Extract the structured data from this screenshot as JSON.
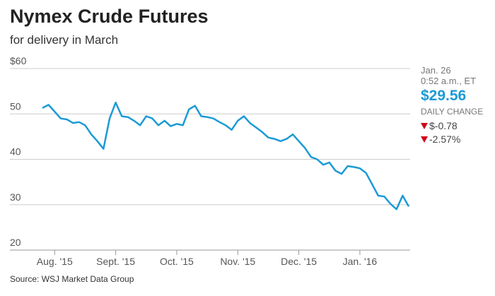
{
  "chart_data": {
    "type": "line",
    "title": "Nymex Crude Futures",
    "subtitle": "for delivery in March",
    "source": "Source: WSJ Market Data Group",
    "annotations": [
      "Jan. 26",
      "0:52 a.m., ET",
      "$29.56",
      "DAILY CHANGE",
      "$-0.78",
      "-2.57%"
    ],
    "categories": [
      null,
      null,
      "Aug. '15",
      null,
      null,
      null,
      null,
      null,
      null,
      null,
      null,
      null,
      "Sept. '15",
      null,
      null,
      null,
      null,
      null,
      null,
      null,
      null,
      null,
      "Oct. '15",
      null,
      null,
      null,
      null,
      null,
      null,
      null,
      null,
      null,
      "Nov. '15",
      null,
      null,
      null,
      null,
      null,
      null,
      null,
      null,
      null,
      "Dec. '15",
      null,
      null,
      null,
      null,
      null,
      null,
      null,
      null,
      null,
      "Jan. '16",
      null,
      null,
      null,
      null,
      null,
      null,
      null,
      null
    ],
    "series": [
      {
        "name": "Nymex Crude Futures",
        "color": "#1b9ad6",
        "values": [
          51.3,
          52.0,
          50.5,
          49.0,
          48.8,
          48.0,
          48.2,
          47.5,
          45.5,
          44.0,
          42.3,
          49.0,
          52.5,
          49.5,
          49.3,
          48.5,
          47.5,
          49.5,
          49.0,
          47.5,
          48.5,
          47.3,
          47.8,
          47.5,
          51.0,
          51.8,
          49.5,
          49.3,
          49.0,
          48.2,
          47.5,
          46.5,
          48.5,
          49.5,
          48.0,
          47.0,
          46.0,
          44.8,
          44.5,
          44.0,
          44.5,
          45.5,
          44.0,
          42.5,
          40.5,
          40.0,
          38.8,
          39.3,
          37.5,
          36.8,
          38.5,
          38.3,
          38.0,
          37.0,
          34.5,
          32.0,
          31.8,
          30.2,
          29.0,
          32.0,
          29.6
        ]
      }
    ],
    "ylim": [
      20,
      60
    ],
    "yticks": [
      20,
      30,
      40,
      50,
      {
        "value": 60,
        "label": "$60"
      }
    ],
    "grid": true
  }
}
